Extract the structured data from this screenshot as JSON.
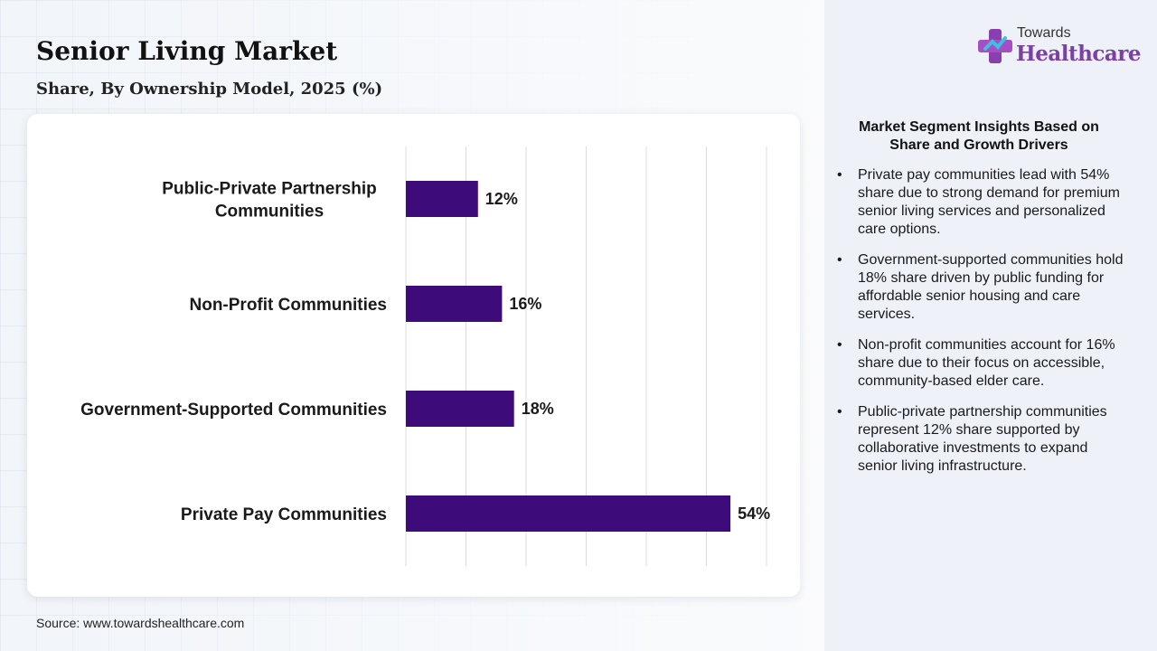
{
  "header": {
    "title": "Senior Living Market",
    "subtitle": "Share, By Ownership Model, 2025 (%)"
  },
  "brand": {
    "line1": "Towards",
    "line2": "Healthcare",
    "logo_icon": "medical-cross-icon",
    "accent_color": "#7b3fa6"
  },
  "chart_data": {
    "type": "bar",
    "orientation": "horizontal",
    "categories": [
      "Public-Private Partnership Communities",
      "Non-Profit Communities",
      "Government-Supported Communities",
      "Private Pay Communities"
    ],
    "category_lines": [
      [
        "Public-Private Partnership",
        "Communities"
      ],
      [
        "Non-Profit Communities"
      ],
      [
        "Government-Supported Communities"
      ],
      [
        "Private Pay Communities"
      ]
    ],
    "values": [
      12,
      16,
      18,
      54
    ],
    "value_labels": [
      "12%",
      "16%",
      "18%",
      "54%"
    ],
    "xlim": [
      0,
      60
    ],
    "x_gridline_step": 10,
    "grid": true,
    "bar_color": "#3d0c7a",
    "title": "Senior Living Market",
    "subtitle": "Share, By Ownership Model, 2025 (%)"
  },
  "insights": {
    "title": "Market Segment Insights Based on Share and Growth Drivers",
    "bullets": [
      "Private pay communities lead with 54% share due to strong demand for premium senior living services and personalized care options.",
      "Government-supported communities hold 18% share driven by public funding for affordable senior housing and care services.",
      "Non-profit communities account for 16% share due to their focus on accessible, community-based elder care.",
      "Public-private partnership communities represent 12% share supported by collaborative investments to expand senior living infrastructure."
    ]
  },
  "footer": {
    "source": "Source: www.towardshealthcare.com"
  }
}
